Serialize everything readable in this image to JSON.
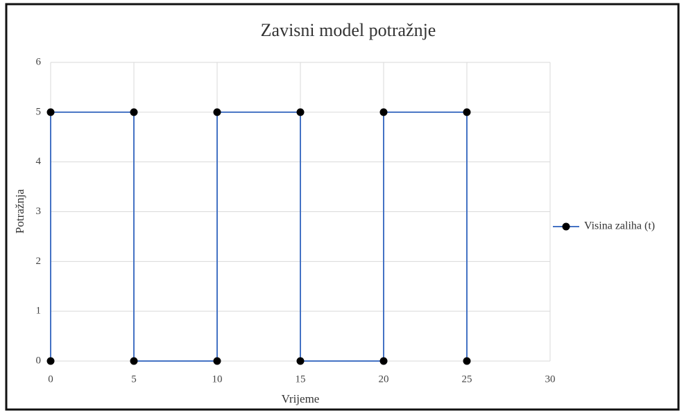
{
  "chart_data": {
    "type": "scatter",
    "title": "Zavisni model potražnje",
    "x_label": "Vrijeme",
    "y_label": "Potražnja",
    "x": [
      0,
      0,
      5,
      5,
      10,
      10,
      15,
      15,
      20,
      20,
      25,
      25
    ],
    "series": [
      {
        "name": "Visina zaliha (t)",
        "color": "#4472c4",
        "marker_color": "#000000",
        "values": [
          0,
          5,
          5,
          0,
          0,
          5,
          5,
          0,
          0,
          5,
          5,
          0
        ]
      }
    ],
    "xlim": [
      0,
      30
    ],
    "xticks": [
      0,
      5,
      10,
      15,
      20,
      25,
      30
    ],
    "ylim": [
      0,
      6
    ],
    "yticks": [
      0,
      1,
      2,
      3,
      4,
      5,
      6
    ],
    "grid": true,
    "legend": "right"
  }
}
